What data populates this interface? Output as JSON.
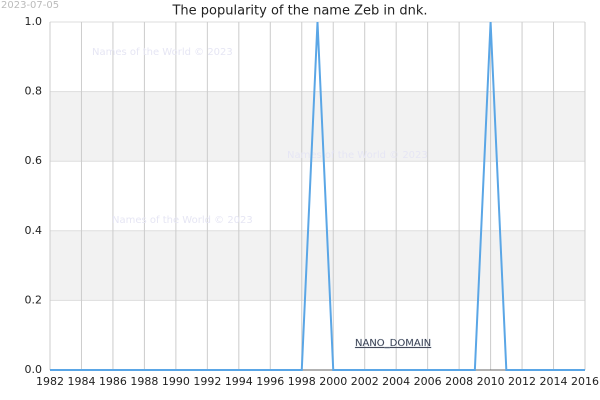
{
  "chart_data": {
    "type": "line",
    "title": "The popularity of the name Zeb in dnk.",
    "date_stamp": "2023-07-05",
    "watermarks": [
      "Names of the World © 2023",
      "Names of the World © 2023",
      "Names of the World © 2023"
    ],
    "domain_label": "NANO_DOMAIN",
    "x": [
      1982,
      1983,
      1984,
      1985,
      1986,
      1987,
      1988,
      1989,
      1990,
      1991,
      1992,
      1993,
      1994,
      1995,
      1996,
      1997,
      1998,
      1999,
      2000,
      2001,
      2002,
      2003,
      2004,
      2005,
      2006,
      2007,
      2008,
      2009,
      2010,
      2011,
      2012,
      2013,
      2014,
      2015,
      2016
    ],
    "series": [
      {
        "color": "#5aa6e6",
        "values": [
          0,
          0,
          0,
          0,
          0,
          0,
          0,
          0,
          0,
          0,
          0,
          0,
          0,
          0,
          0,
          0,
          0,
          1,
          0,
          0,
          0,
          0,
          0,
          0,
          0,
          0,
          0,
          0,
          1,
          0,
          0,
          0,
          0,
          0,
          0
        ]
      }
    ],
    "xlim": [
      1982,
      2016
    ],
    "xticks": [
      1982,
      1984,
      1986,
      1988,
      1990,
      1992,
      1994,
      1996,
      1998,
      2000,
      2002,
      2004,
      2006,
      2008,
      2010,
      2012,
      2014,
      2016
    ],
    "ylim": [
      0,
      1
    ],
    "yticks": [
      {
        "value": 0,
        "label": "0.0"
      },
      {
        "value": 0.2,
        "label": "0.2"
      },
      {
        "value": 0.4,
        "label": "0.4"
      },
      {
        "value": 0.6,
        "label": "0.6"
      },
      {
        "value": 0.8,
        "label": "0.8"
      },
      {
        "value": 1,
        "label": "1.0"
      }
    ],
    "grid": true
  }
}
